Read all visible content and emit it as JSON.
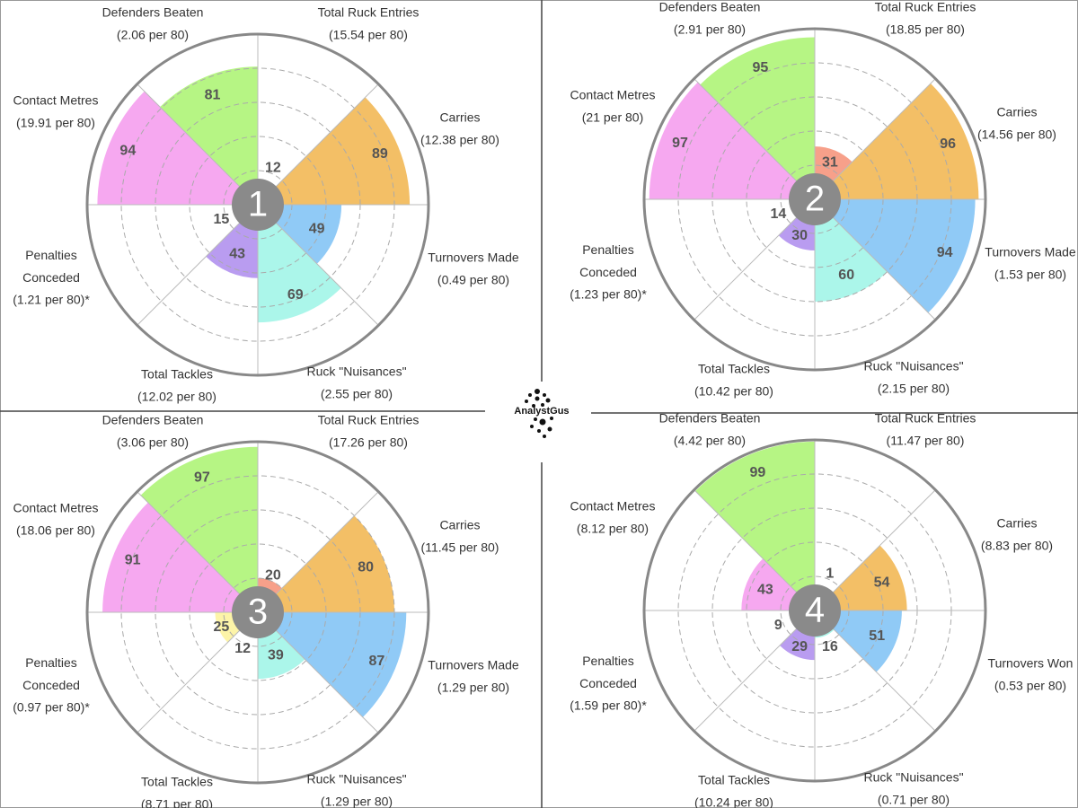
{
  "logo": "AnalystGus",
  "chart_data": [
    {
      "type": "polar",
      "badge": "1",
      "categories": [
        "Total Ruck Entries",
        "Carries",
        "Turnovers Made",
        "Ruck \"Nuisances\"",
        "Total Tackles",
        "Penalties\nConceded",
        "Contact Metres",
        "Defenders Beaten"
      ],
      "details": [
        "(15.54 per 80)",
        "(12.38 per 80)",
        "(0.49 per 80)",
        "(2.55 per 80)",
        "(12.02 per 80)",
        "(1.21 per 80)*",
        "(19.91 per 80)",
        "(2.06 per 80)"
      ],
      "values": [
        12,
        89,
        49,
        69,
        43,
        15,
        94,
        81
      ],
      "colors": [
        "#f7a08a",
        "#f3bf66",
        "#90caf6",
        "#abf6ea",
        "#b99cf0",
        "#fdf4a8",
        "#f6a8f0",
        "#b6f584"
      ],
      "rlim": [
        0,
        100
      ],
      "rticks": [
        20,
        40,
        60,
        80
      ]
    },
    {
      "type": "polar",
      "badge": "2",
      "categories": [
        "Total Ruck Entries",
        "Carries",
        "Turnovers Made",
        "Ruck \"Nuisances\"",
        "Total Tackles",
        "Penalties\nConceded",
        "Contact Metres",
        "Defenders Beaten"
      ],
      "details": [
        "(18.85 per 80)",
        "(14.56 per 80)",
        "(1.53 per 80)",
        "(2.15 per 80)",
        "(10.42 per 80)",
        "(1.23 per 80)*",
        "(21 per 80)",
        "(2.91 per 80)"
      ],
      "values": [
        31,
        96,
        94,
        60,
        30,
        14,
        97,
        95
      ],
      "colors": [
        "#f7a08a",
        "#f3bf66",
        "#90caf6",
        "#abf6ea",
        "#b99cf0",
        "#fdf4a8",
        "#f6a8f0",
        "#b6f584"
      ],
      "rlim": [
        0,
        100
      ],
      "rticks": [
        20,
        40,
        60,
        80
      ]
    },
    {
      "type": "polar",
      "badge": "3",
      "categories": [
        "Total Ruck Entries",
        "Carries",
        "Turnovers Made",
        "Ruck \"Nuisances\"",
        "Total Tackles",
        "Penalties\nConceded",
        "Contact Metres",
        "Defenders Beaten"
      ],
      "details": [
        "(17.26 per 80)",
        "(11.45 per 80)",
        "(1.29 per 80)",
        "(1.29 per 80)",
        "(8.71 per 80)",
        "(0.97 per 80)*",
        "(18.06 per 80)",
        "(3.06 per 80)"
      ],
      "values": [
        20,
        80,
        87,
        39,
        12,
        25,
        91,
        97
      ],
      "colors": [
        "#f7a08a",
        "#f3bf66",
        "#90caf6",
        "#abf6ea",
        "#b99cf0",
        "#fdf4a8",
        "#f6a8f0",
        "#b6f584"
      ],
      "rlim": [
        0,
        100
      ],
      "rticks": [
        20,
        40,
        60,
        80
      ]
    },
    {
      "type": "polar",
      "badge": "4",
      "categories": [
        "Total Ruck Entries",
        "Carries",
        "Turnovers Won",
        "Ruck \"Nuisances\"",
        "Total Tackles",
        "Penalties\nConceded",
        "Contact Metres",
        "Defenders Beaten"
      ],
      "details": [
        "(11.47 per 80)",
        "(8.83 per 80)",
        "(0.53 per 80)",
        "(0.71 per 80)",
        "(10.24 per 80)",
        "(1.59 per 80)*",
        "(8.12 per 80)",
        "(4.42 per 80)"
      ],
      "values": [
        1,
        54,
        51,
        16,
        29,
        9,
        43,
        99
      ],
      "colors": [
        "#f7a08a",
        "#f3bf66",
        "#90caf6",
        "#abf6ea",
        "#b99cf0",
        "#fdf4a8",
        "#f6a8f0",
        "#b6f584"
      ],
      "rlim": [
        0,
        100
      ],
      "rticks": [
        20,
        40,
        60,
        80
      ]
    }
  ]
}
